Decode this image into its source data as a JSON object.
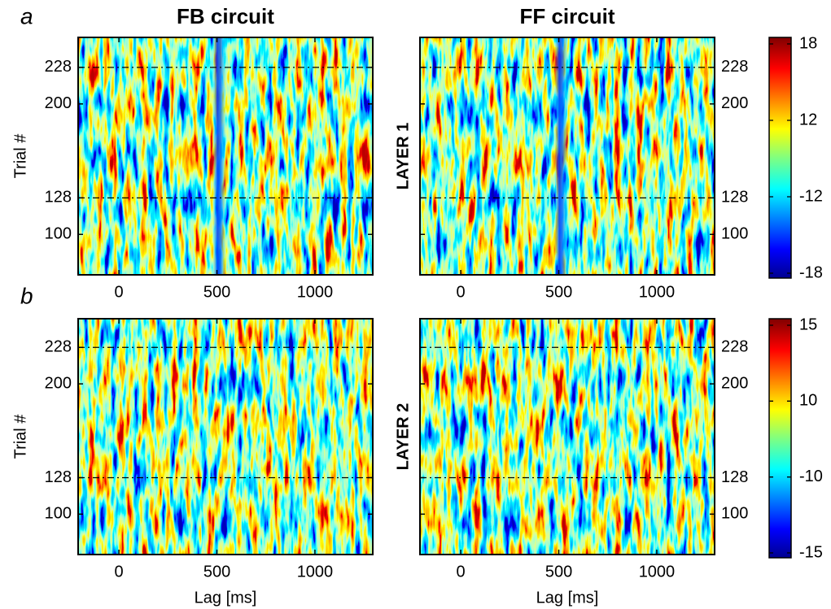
{
  "panel_labels": [
    "a",
    "b"
  ],
  "chart_data": [
    {
      "type": "heatmap",
      "title": "FB circuit",
      "ylabel": "Trial #",
      "xlim": [
        -208,
        1295
      ],
      "ylim": [
        69,
        251
      ],
      "xticks": [
        0,
        500,
        1000
      ],
      "yticks": [
        100,
        128,
        200,
        228
      ],
      "hlines": [
        128,
        228
      ]
    },
    {
      "type": "heatmap",
      "title": "FF circuit",
      "ylabel": "LAYER 1",
      "xlim": [
        -208,
        1295
      ],
      "ylim": [
        69,
        251
      ],
      "xticks": [
        0,
        500,
        1000
      ],
      "yticks": [
        100,
        128,
        200,
        228
      ],
      "hlines": [
        128,
        228
      ],
      "colorbar_ticks": [
        18,
        12,
        -12,
        -18
      ]
    },
    {
      "type": "heatmap",
      "ylabel": "Trial #",
      "xlabel": "Lag [ms]",
      "xlim": [
        -208,
        1295
      ],
      "ylim": [
        69,
        250
      ],
      "xticks": [
        0,
        500,
        1000
      ],
      "yticks": [
        100,
        128,
        200,
        228
      ],
      "hlines": [
        128,
        228
      ]
    },
    {
      "type": "heatmap",
      "ylabel": "LAYER 2",
      "xlabel": "Lag [ms]",
      "xlim": [
        -208,
        1295
      ],
      "ylim": [
        69,
        250
      ],
      "xticks": [
        0,
        500,
        1000
      ],
      "yticks": [
        100,
        128,
        200,
        228
      ],
      "hlines": [
        128,
        228
      ],
      "colorbar_ticks": [
        15,
        10,
        -10,
        -15
      ]
    }
  ]
}
